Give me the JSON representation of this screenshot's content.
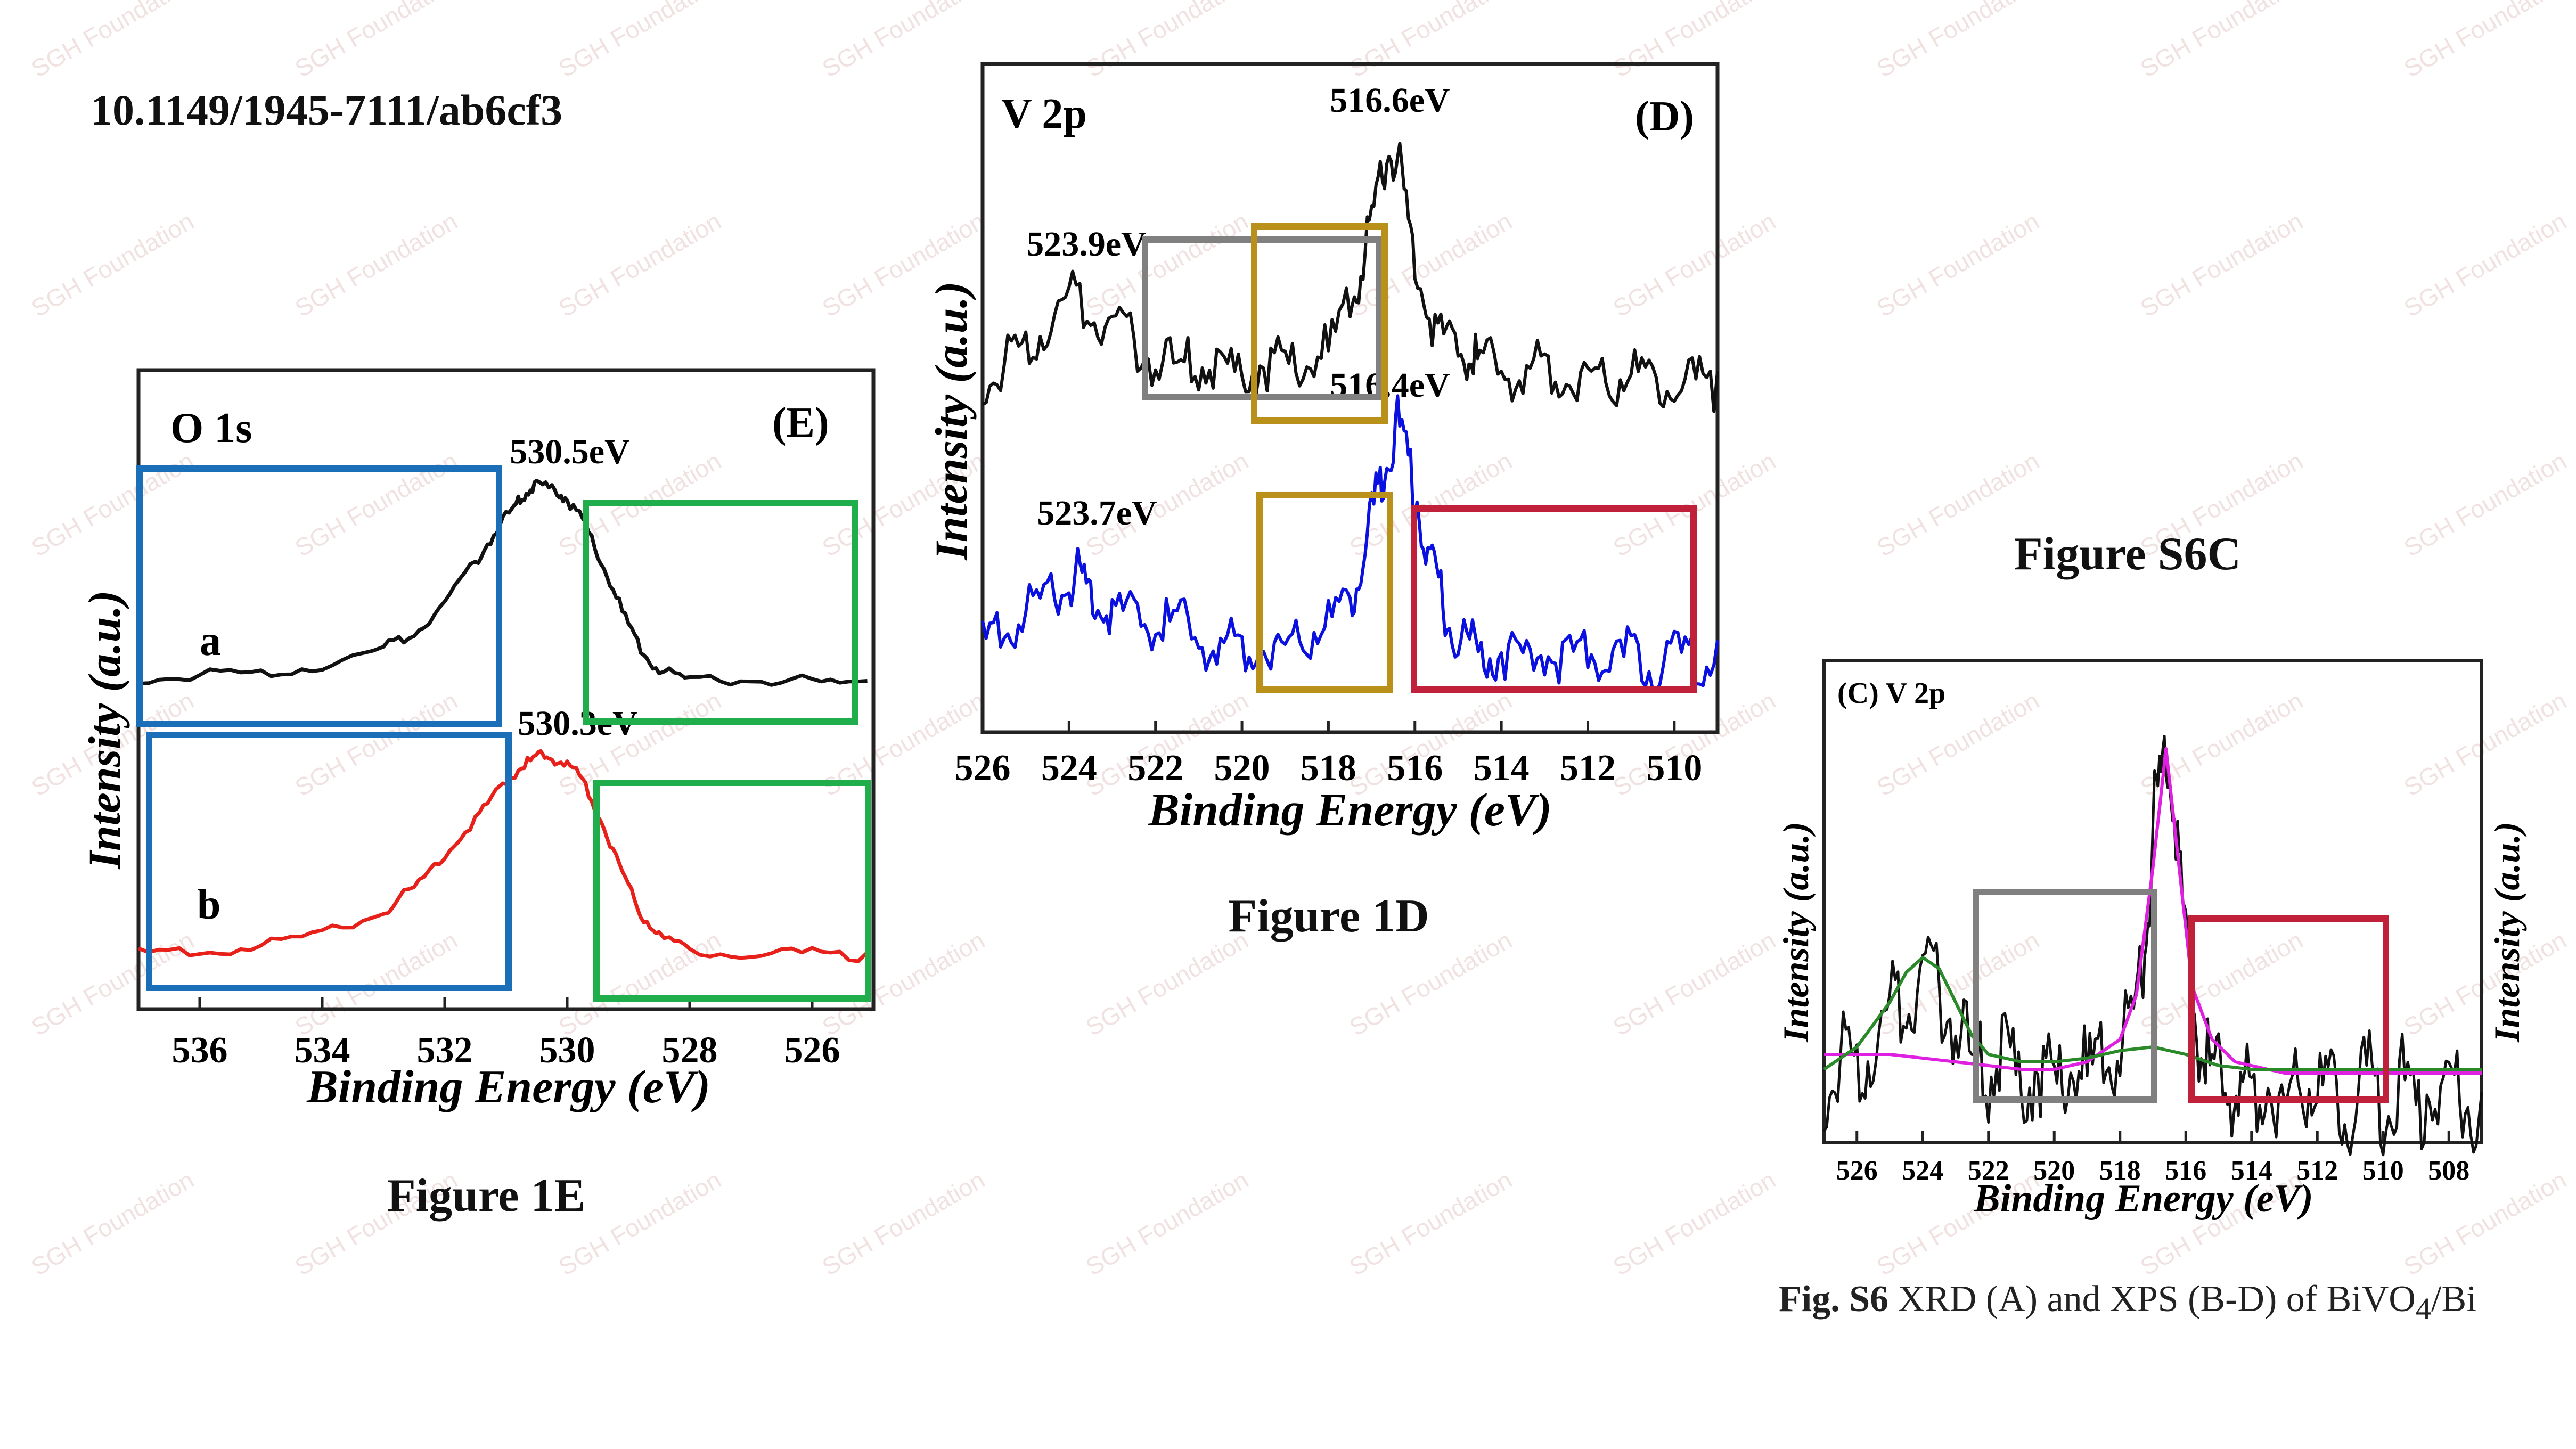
{
  "doi": "10.1149/1945-7111/ab6cf3",
  "captions": {
    "fig1e": "Figure 1E",
    "fig1d": "Figure 1D",
    "figs6c": "Figure S6C"
  },
  "figs6_caption": {
    "bold": "Fig. S6",
    "text": " XRD (A) and XPS (B-D) of BiVO",
    "sub": "4",
    "tail": "/Bi"
  },
  "watermark": "SGH Foundation",
  "colors": {
    "black": "#111111",
    "blue": "#0a10e0",
    "red": "#e8201a",
    "green_box": "#1fae4b",
    "blue_box": "#1b6fb8",
    "gray_box": "#808080",
    "gold_box": "#b8901a",
    "crimson_box": "#c0203a",
    "magenta": "#e020e0",
    "green_fit": "#2a8a2a"
  },
  "chart_data": [
    {
      "id": "fig1e",
      "type": "line",
      "title": "O 1s",
      "panel_label": "(E)",
      "xlabel": "Binding Energy (eV)",
      "ylabel": "Intensity (a.u.)",
      "xlim": [
        537,
        525
      ],
      "x_ticks": [
        536,
        534,
        532,
        530,
        528,
        526
      ],
      "series": [
        {
          "name": "a",
          "peak_label": "530.5eV",
          "peak_x": 530.5,
          "x": [
            537,
            536,
            535,
            534,
            533,
            532.5,
            532,
            531.5,
            531.2,
            530.9,
            530.7,
            530.5,
            530.2,
            530,
            529.7,
            529.4,
            529.1,
            528.8,
            528.5,
            528,
            527,
            526,
            525.1
          ],
          "y": [
            0.05,
            0.07,
            0.08,
            0.12,
            0.2,
            0.28,
            0.42,
            0.62,
            0.76,
            0.88,
            0.95,
            1.0,
            0.98,
            0.93,
            0.8,
            0.6,
            0.38,
            0.2,
            0.1,
            0.05,
            0.05,
            0.04,
            0.03
          ]
        },
        {
          "name": "b",
          "peak_label": "530.3eV",
          "peak_x": 530.3,
          "x": [
            537,
            536,
            535,
            534,
            533,
            532.5,
            532,
            531.5,
            531.1,
            530.8,
            530.5,
            530.3,
            530,
            529.7,
            529.4,
            529.1,
            528.8,
            528.5,
            528,
            527,
            526,
            525.1
          ],
          "y": [
            0.04,
            0.05,
            0.08,
            0.14,
            0.24,
            0.36,
            0.52,
            0.7,
            0.84,
            0.94,
            1.0,
            1.0,
            0.97,
            0.86,
            0.66,
            0.44,
            0.24,
            0.12,
            0.06,
            0.04,
            0.04,
            0.03
          ]
        }
      ]
    },
    {
      "id": "fig1d",
      "type": "line",
      "title": "V 2p",
      "panel_label": "(D)",
      "xlabel": "Binding Energy (eV)",
      "ylabel": "Intensity (a.u.)",
      "xlim": [
        526,
        509
      ],
      "x_ticks": [
        526,
        524,
        522,
        520,
        518,
        516,
        514,
        512,
        510
      ],
      "series": [
        {
          "name": "upper",
          "peak_labels": [
            {
              "text": "516.6eV",
              "x": 516.6
            },
            {
              "text": "523.9eV",
              "x": 523.9
            }
          ],
          "x": [
            526,
            525.5,
            525,
            524.5,
            524,
            523.5,
            523,
            522.5,
            522,
            521.5,
            521,
            520.5,
            520,
            519.5,
            519,
            518.5,
            518,
            517.5,
            517.2,
            516.9,
            516.6,
            516.3,
            516,
            515.6,
            515.2,
            514.8,
            514.5,
            514,
            513.5,
            513,
            512.5,
            512,
            511.5,
            511,
            510.5,
            510,
            509.5,
            509
          ],
          "y": [
            0.05,
            0.12,
            0.2,
            0.3,
            0.4,
            0.36,
            0.28,
            0.22,
            0.14,
            0.12,
            0.13,
            0.1,
            0.11,
            0.14,
            0.12,
            0.16,
            0.18,
            0.4,
            0.55,
            0.8,
            1.0,
            0.88,
            0.55,
            0.32,
            0.22,
            0.18,
            0.15,
            0.12,
            0.1,
            0.12,
            0.09,
            0.11,
            0.08,
            0.1,
            0.07,
            0.09,
            0.06,
            0.05
          ]
        },
        {
          "name": "lower",
          "peak_labels": [
            {
              "text": "516.4eV",
              "x": 516.4
            },
            {
              "text": "523.7eV",
              "x": 523.7
            }
          ],
          "x": [
            526,
            525.5,
            525,
            524.5,
            524,
            523.7,
            523.4,
            523,
            522.5,
            522,
            521.5,
            521,
            520.5,
            520,
            519.5,
            519,
            518.5,
            518,
            517.5,
            517.2,
            516.9,
            516.7,
            516.4,
            516.1,
            515.8,
            515.5,
            515.2,
            514.8,
            514.4,
            514,
            513.5,
            513,
            512.5,
            512,
            511.5,
            511,
            510.5,
            510,
            509.5,
            509
          ],
          "y": [
            0.12,
            0.2,
            0.26,
            0.32,
            0.36,
            0.4,
            0.3,
            0.27,
            0.24,
            0.2,
            0.22,
            0.15,
            0.12,
            0.1,
            0.14,
            0.12,
            0.18,
            0.2,
            0.3,
            0.5,
            0.7,
            0.85,
            1.0,
            0.85,
            0.55,
            0.35,
            0.22,
            0.12,
            0.08,
            0.1,
            0.06,
            0.1,
            0.05,
            0.09,
            0.06,
            0.08,
            0.05,
            0.07,
            0.05,
            0.08
          ]
        }
      ]
    },
    {
      "id": "figs6c",
      "type": "line",
      "title": "(C) V 2p",
      "xlabel": "Binding Energy (eV)",
      "ylabel": "Intensity (a.u.)",
      "xlim": [
        527,
        507
      ],
      "x_ticks": [
        526,
        524,
        522,
        520,
        518,
        516,
        514,
        512,
        510,
        508
      ],
      "series": [
        {
          "name": "measured",
          "color": "black",
          "x": [
            527,
            526.5,
            526,
            525.5,
            525,
            524.5,
            524,
            523.5,
            523,
            522.5,
            522,
            521.5,
            521,
            520.5,
            520,
            519.5,
            519,
            518.5,
            518,
            517.5,
            517.2,
            516.9,
            516.6,
            516.3,
            516,
            515.6,
            515.2,
            514.8,
            514.4,
            514,
            513.5,
            513,
            512.5,
            512,
            511.5,
            511,
            510.5,
            510,
            509.5,
            509,
            508.5,
            508,
            507.5,
            507
          ],
          "y": [
            0.05,
            0.15,
            0.12,
            0.2,
            0.28,
            0.32,
            0.38,
            0.33,
            0.25,
            0.14,
            0.1,
            0.18,
            0.08,
            0.14,
            0.06,
            0.16,
            0.1,
            0.18,
            0.2,
            0.3,
            0.5,
            0.85,
            1.0,
            0.82,
            0.45,
            0.22,
            0.12,
            0.08,
            0.1,
            0.04,
            0.12,
            0.03,
            0.14,
            0.05,
            0.1,
            0.02,
            0.12,
            0.04,
            0.1,
            0.03,
            0.09,
            0.02,
            0.08,
            0.0
          ]
        },
        {
          "name": "fit_total",
          "color": "magenta",
          "x": [
            527,
            525,
            523,
            521,
            520,
            519,
            518,
            517.5,
            517,
            516.6,
            516.2,
            515.8,
            515.2,
            514.5,
            513,
            511,
            509,
            507
          ],
          "y": [
            0.1,
            0.1,
            0.08,
            0.06,
            0.06,
            0.08,
            0.14,
            0.26,
            0.6,
            0.92,
            0.6,
            0.28,
            0.14,
            0.08,
            0.05,
            0.05,
            0.05,
            0.05
          ]
        },
        {
          "name": "fit_component",
          "color": "green",
          "x": [
            527,
            526,
            525,
            524.5,
            524,
            523.5,
            523,
            522.5,
            522,
            521,
            520,
            519,
            518,
            517,
            516,
            515,
            514,
            512,
            510,
            508,
            507
          ],
          "y": [
            0.06,
            0.12,
            0.24,
            0.32,
            0.36,
            0.33,
            0.24,
            0.15,
            0.1,
            0.08,
            0.08,
            0.09,
            0.11,
            0.12,
            0.1,
            0.07,
            0.06,
            0.06,
            0.06,
            0.06,
            0.06
          ]
        }
      ]
    }
  ]
}
